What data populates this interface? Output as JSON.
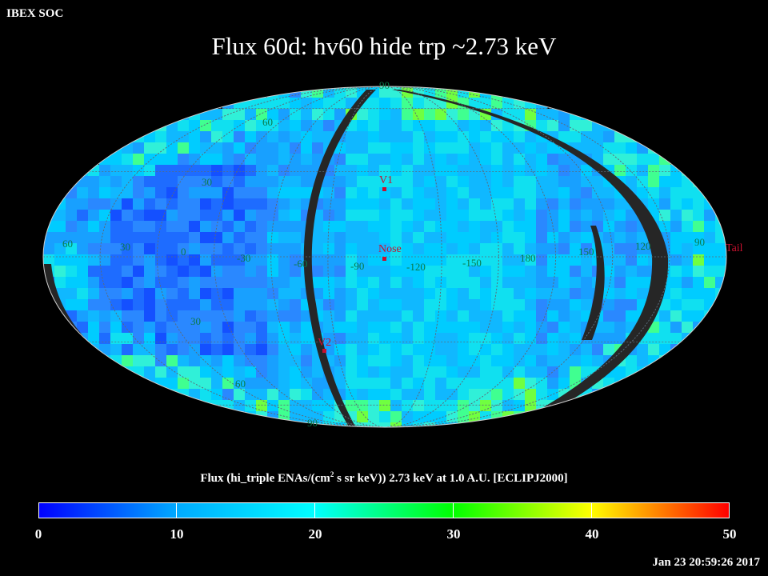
{
  "header": {
    "org": "IBEX SOC"
  },
  "title": "Flux   60d: hv60 hide trp ~2.73 keV",
  "map": {
    "projection": "Aitoff/Hammer all-sky",
    "latitude_labels": [
      {
        "text": "60",
        "name": "lat-60-label"
      },
      {
        "text": "30",
        "name": "lat-30-label"
      },
      {
        "text": "30",
        "name": "lat-minus30-label"
      },
      {
        "text": "60",
        "name": "lat-minus60-label"
      },
      {
        "text": "90",
        "name": "lat-90-label"
      },
      {
        "text": "90",
        "name": "lat-minus90-label"
      }
    ],
    "longitude_labels": [
      {
        "text": "60",
        "name": "lon-60-left-label"
      },
      {
        "text": "30",
        "name": "lon-30-label"
      },
      {
        "text": "0",
        "name": "lon-0-label"
      },
      {
        "text": "-30",
        "name": "lon-minus30-label"
      },
      {
        "text": "-60",
        "name": "lon-minus60-label"
      },
      {
        "text": "-90",
        "name": "lon-minus90-label"
      },
      {
        "text": "-120",
        "name": "lon-minus120-label"
      },
      {
        "text": "-150",
        "name": "lon-minus150-label"
      },
      {
        "text": "180",
        "name": "lon-180-label"
      },
      {
        "text": "150",
        "name": "lon-150-label"
      },
      {
        "text": "120",
        "name": "lon-120-label"
      },
      {
        "text": "90",
        "name": "lon-90-label"
      }
    ],
    "markers": [
      {
        "text": "V1",
        "name": "v1-marker"
      },
      {
        "text": "Nose",
        "name": "nose-marker"
      },
      {
        "text": "V2",
        "name": "v2-marker"
      },
      {
        "text": "Tail",
        "name": "tail-marker"
      }
    ],
    "grid_color": "#5a6b7a",
    "label_color": "#0a7a4a",
    "marker_color": "#c8102e",
    "gap_color": "#262626"
  },
  "colorbar": {
    "label": "Flux (hi_triple ENAs/(cm",
    "label_sup": "2",
    "label_rest": " s sr keV))  2.73 keV at 1.0 A.U. [ECLIPJ2000]",
    "min": 0,
    "max": 50,
    "ticks": [
      "0",
      "10",
      "20",
      "30",
      "40",
      "50"
    ],
    "colors": [
      "#0000ff",
      "#00aaff",
      "#00ffff",
      "#00ff00",
      "#ffff00",
      "#ff0000"
    ]
  },
  "timestamp": "Jan 23 20:59:26 2017"
}
